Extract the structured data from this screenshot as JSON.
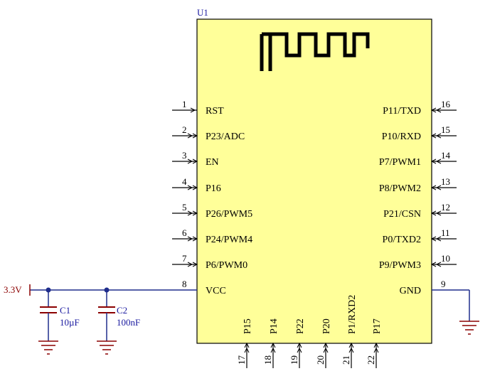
{
  "module": {
    "ref": "U1",
    "body_color": "#ffff99",
    "left_pins": [
      {
        "num": "1",
        "label": "RST"
      },
      {
        "num": "2",
        "label": "P23/ADC"
      },
      {
        "num": "3",
        "label": "EN"
      },
      {
        "num": "4",
        "label": "P16"
      },
      {
        "num": "5",
        "label": "P26/PWM5"
      },
      {
        "num": "6",
        "label": "P24/PWM4"
      },
      {
        "num": "7",
        "label": "P6/PWM0"
      },
      {
        "num": "8",
        "label": "VCC"
      }
    ],
    "right_pins": [
      {
        "num": "16",
        "label": "P11/TXD"
      },
      {
        "num": "15",
        "label": "P10/RXD"
      },
      {
        "num": "14",
        "label": "P7/PWM1"
      },
      {
        "num": "13",
        "label": "P8/PWM2"
      },
      {
        "num": "12",
        "label": "P21/CSN"
      },
      {
        "num": "11",
        "label": "P0/TXD2"
      },
      {
        "num": "10",
        "label": "P9/PWM3"
      },
      {
        "num": "9",
        "label": "GND"
      }
    ],
    "bottom_pins": [
      {
        "num": "17",
        "label": "P15"
      },
      {
        "num": "18",
        "label": "P14"
      },
      {
        "num": "19",
        "label": "P22"
      },
      {
        "num": "20",
        "label": "P20"
      },
      {
        "num": "21",
        "label": "P1/RXD2"
      },
      {
        "num": "22",
        "label": "P17"
      }
    ]
  },
  "power_net": "3.3V",
  "capacitors": [
    {
      "ref": "C1",
      "value": "10µF"
    },
    {
      "ref": "C2",
      "value": "100nF"
    }
  ],
  "colors": {
    "wire": "#1f2d8c",
    "ground": "#8b0000",
    "module_border": "#000000",
    "antenna": "#000000"
  }
}
